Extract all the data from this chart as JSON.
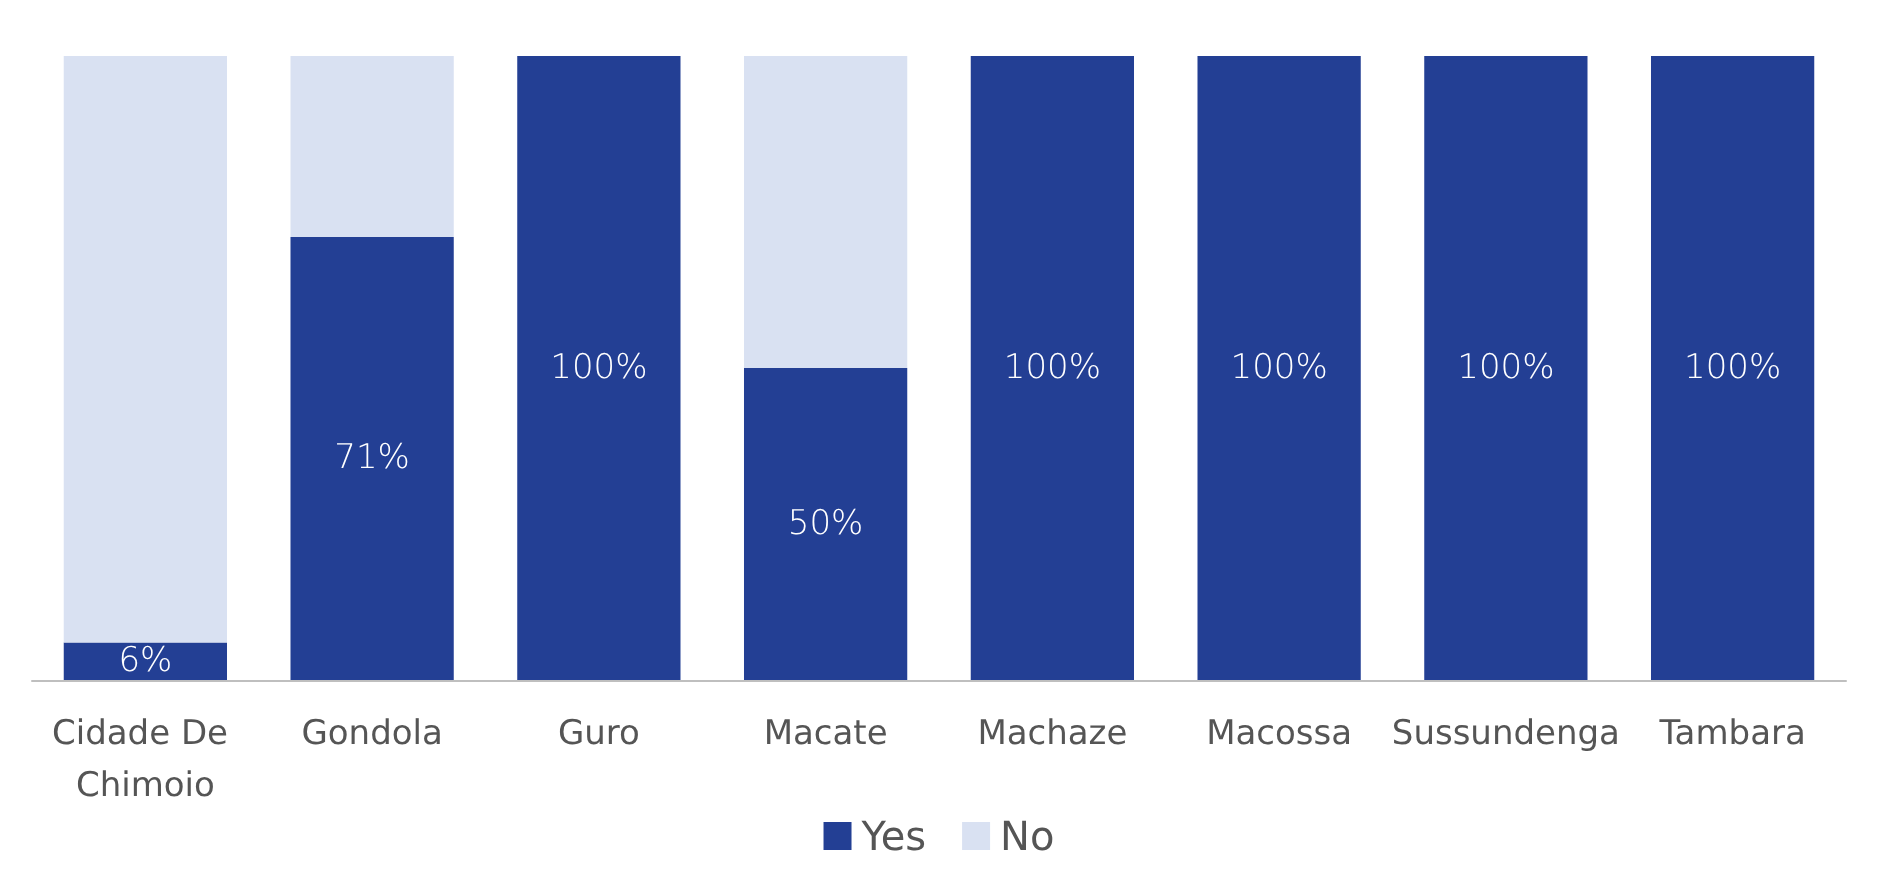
{
  "chart_data": {
    "type": "bar",
    "stacked": true,
    "categories": [
      "Cidade De Chimoio",
      "Gondola",
      "Guro",
      "Macate",
      "Machaze",
      "Macossa",
      "Sussundenga",
      "Tambara"
    ],
    "series": [
      {
        "name": "Yes",
        "color": "#233f94",
        "values": [
          6,
          71,
          100,
          50,
          100,
          100,
          100,
          100
        ],
        "value_labels": [
          "6%",
          "71%",
          "100%",
          "50%",
          "100%",
          "100%",
          "100%",
          "100%"
        ]
      },
      {
        "name": "No",
        "color": "#d9e1f2",
        "values": [
          94,
          29,
          0,
          50,
          0,
          0,
          0,
          0
        ]
      }
    ],
    "ylim": [
      0,
      100
    ],
    "tick_labels": "x",
    "legend": "bottom"
  }
}
